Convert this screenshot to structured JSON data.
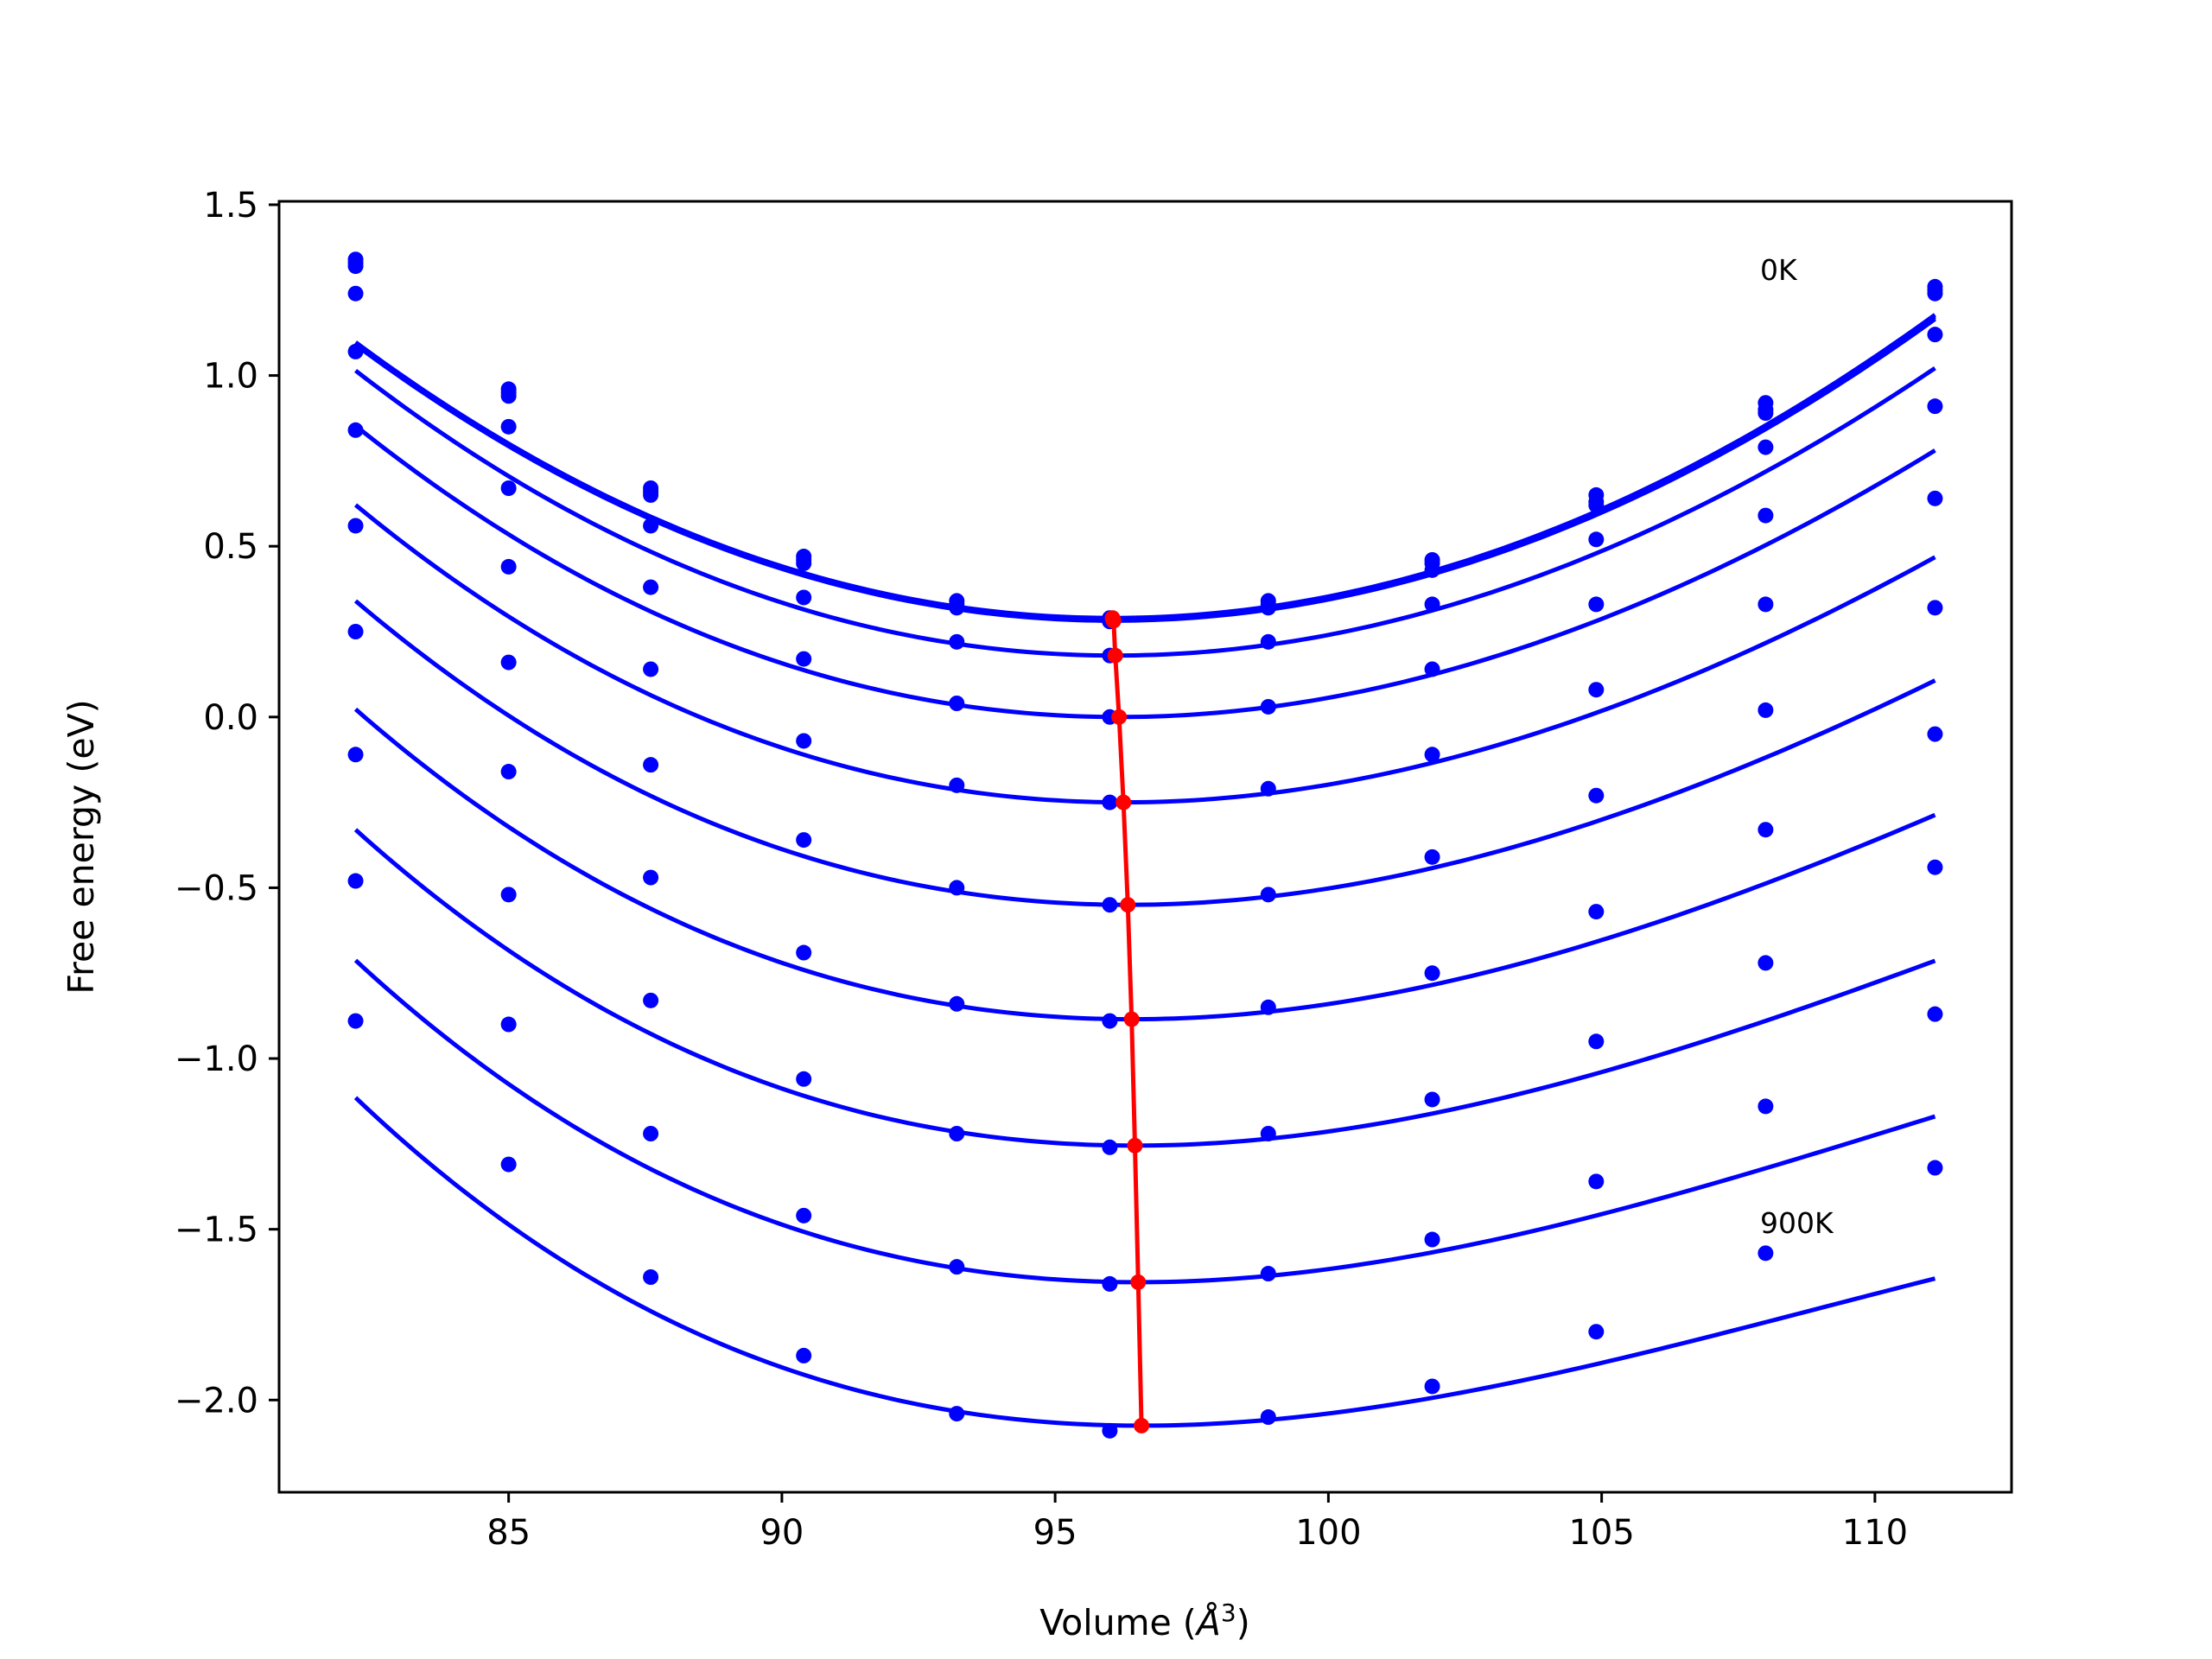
{
  "chart_data": {
    "type": "line",
    "xlabel": "Volume (",
    "xlabel_symbol": "Å",
    "xlabel_exponent": "3",
    "xlabel_suffix": ")",
    "ylabel": "Free energy (eV)",
    "xlim": [
      80.8,
      112.5
    ],
    "ylim": [
      -2.27,
      1.51
    ],
    "xticks": [
      85,
      90,
      95,
      100,
      105,
      110
    ],
    "yticks": [
      1.5,
      1.0,
      0.5,
      0.0,
      -0.5,
      -1.0,
      -1.5,
      -2.0
    ],
    "xtick_labels": [
      "85",
      "90",
      "95",
      "100",
      "105",
      "110"
    ],
    "ytick_labels": [
      "1.5",
      "1.0",
      "0.5",
      "0.0",
      "−0.5",
      "−1.0",
      "−1.5",
      "−2.0"
    ],
    "grid": false,
    "colors": {
      "curves": "#0000ff",
      "minima": "#ff0000"
    },
    "annotations": [
      {
        "text": "0K",
        "x": 107.9,
        "y": 1.31
      },
      {
        "text": "900K",
        "x": 107.9,
        "y": -1.48
      }
    ],
    "x": [
      82.2,
      85.0,
      87.6,
      90.4,
      93.2,
      96.0,
      98.9,
      101.9,
      104.9,
      108.0,
      111.1
    ],
    "series": [
      {
        "v0": 96.05,
        "f0": 0.29,
        "a": 0.00407,
        "b": -1e-05,
        "points": [
          1.34,
          0.96,
          0.67,
          0.47,
          0.34,
          0.29,
          0.34,
          0.46,
          0.65,
          0.92,
          1.26
        ]
      },
      {
        "v0": 96.06,
        "f0": 0.285,
        "a": 0.00407,
        "b": -1e-05,
        "points": [
          1.33,
          0.95,
          0.66,
          0.46,
          0.33,
          0.28,
          0.33,
          0.45,
          0.63,
          0.9,
          1.25
        ]
      },
      {
        "v0": 96.07,
        "f0": 0.282,
        "a": 0.00406,
        "b": -1e-05,
        "points": [
          1.32,
          0.94,
          0.65,
          0.45,
          0.32,
          0.28,
          0.32,
          0.43,
          0.62,
          0.89,
          1.24
        ]
      },
      {
        "v0": 96.1,
        "f0": 0.18,
        "a": 0.00404,
        "b": -2e-05,
        "points": [
          1.24,
          0.85,
          0.56,
          0.35,
          0.22,
          0.18,
          0.22,
          0.33,
          0.52,
          0.79,
          1.12
        ]
      },
      {
        "v0": 96.17,
        "f0": 0.0,
        "a": 0.00395,
        "b": -3e-05,
        "points": [
          1.07,
          0.67,
          0.38,
          0.17,
          0.04,
          0.0,
          0.03,
          0.14,
          0.33,
          0.59,
          0.91
        ]
      },
      {
        "v0": 96.25,
        "f0": -0.25,
        "a": 0.00385,
        "b": -4e-05,
        "points": [
          0.84,
          0.44,
          0.14,
          -0.07,
          -0.2,
          -0.25,
          -0.21,
          -0.11,
          0.08,
          0.33,
          0.64
        ]
      },
      {
        "v0": 96.33,
        "f0": -0.55,
        "a": 0.00375,
        "b": -5e-05,
        "points": [
          0.56,
          0.16,
          -0.14,
          -0.36,
          -0.5,
          -0.55,
          -0.52,
          -0.41,
          -0.23,
          0.02,
          0.32
        ]
      },
      {
        "v0": 96.4,
        "f0": -0.885,
        "a": 0.00365,
        "b": -6e-05,
        "points": [
          0.25,
          -0.16,
          -0.47,
          -0.69,
          -0.84,
          -0.89,
          -0.85,
          -0.75,
          -0.57,
          -0.33,
          -0.05
        ]
      },
      {
        "v0": 96.46,
        "f0": -1.255,
        "a": 0.00355,
        "b": -7e-05,
        "points": [
          -0.11,
          -0.52,
          -0.83,
          -1.06,
          -1.22,
          -1.26,
          -1.22,
          -1.12,
          -0.95,
          -0.72,
          -0.44
        ]
      },
      {
        "v0": 96.52,
        "f0": -1.655,
        "a": 0.00345,
        "b": -8e-05,
        "points": [
          -0.48,
          -0.9,
          -1.22,
          -1.46,
          -1.61,
          -1.66,
          -1.63,
          -1.53,
          -1.36,
          -1.14,
          -0.87
        ]
      },
      {
        "v0": 96.58,
        "f0": -2.075,
        "a": 0.00335,
        "b": -9e-05,
        "points": [
          -0.89,
          -1.31,
          -1.64,
          -1.87,
          -2.04,
          -2.09,
          -2.05,
          -1.96,
          -1.8,
          -1.57,
          -1.32
        ]
      }
    ],
    "minima": [
      {
        "v": 96.05,
        "f": 0.29
      },
      {
        "v": 96.06,
        "f": 0.285
      },
      {
        "v": 96.07,
        "f": 0.282
      },
      {
        "v": 96.1,
        "f": 0.18
      },
      {
        "v": 96.17,
        "f": 0.0
      },
      {
        "v": 96.25,
        "f": -0.25
      },
      {
        "v": 96.33,
        "f": -0.55
      },
      {
        "v": 96.4,
        "f": -0.885
      },
      {
        "v": 96.46,
        "f": -1.255
      },
      {
        "v": 96.52,
        "f": -1.655
      },
      {
        "v": 96.58,
        "f": -2.075
      }
    ]
  }
}
